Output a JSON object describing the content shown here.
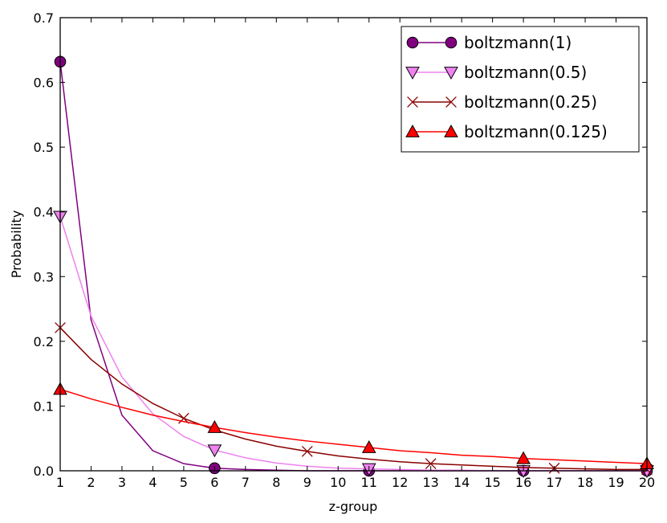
{
  "chart_data": {
    "type": "line",
    "xlabel": "z-group",
    "ylabel": "Probability",
    "xlim": [
      1,
      20
    ],
    "ylim": [
      0,
      0.7
    ],
    "xticks": [
      1,
      2,
      3,
      4,
      5,
      6,
      7,
      8,
      9,
      10,
      11,
      12,
      13,
      14,
      15,
      16,
      17,
      18,
      19,
      20
    ],
    "yticks": [
      0.0,
      0.1,
      0.2,
      0.3,
      0.4,
      0.5,
      0.6,
      0.7
    ],
    "grid": false,
    "legend_position": "top-right",
    "series": [
      {
        "name": "boltzmann(1)",
        "color": "#800080",
        "marker": "circle",
        "marker_every": 5,
        "x": [
          1,
          2,
          3,
          4,
          5,
          6,
          7,
          8,
          9,
          10,
          11,
          12,
          13,
          14,
          15,
          16,
          17,
          18,
          19,
          20
        ],
        "values": [
          0.632,
          0.233,
          0.086,
          0.031,
          0.011,
          0.004,
          0.002,
          0.001,
          0.0,
          0.0,
          0.0,
          0.0,
          0.0,
          0.0,
          0.0,
          0.0,
          0.0,
          0.0,
          0.0,
          0.0
        ]
      },
      {
        "name": "boltzmann(0.5)",
        "color": "#ee82ee",
        "marker": "triangle-down",
        "marker_every": 5,
        "x": [
          1,
          2,
          3,
          4,
          5,
          6,
          7,
          8,
          9,
          10,
          11,
          12,
          13,
          14,
          15,
          16,
          17,
          18,
          19,
          20
        ],
        "values": [
          0.393,
          0.239,
          0.145,
          0.088,
          0.053,
          0.032,
          0.02,
          0.012,
          0.007,
          0.004,
          0.003,
          0.002,
          0.001,
          0.001,
          0.0,
          0.0,
          0.0,
          0.0,
          0.0,
          0.0
        ]
      },
      {
        "name": "boltzmann(0.25)",
        "color": "#8b0000",
        "marker": "x",
        "marker_every": 4,
        "x": [
          1,
          2,
          3,
          4,
          5,
          6,
          7,
          8,
          9,
          10,
          11,
          12,
          13,
          14,
          15,
          16,
          17,
          18,
          19,
          20
        ],
        "values": [
          0.221,
          0.172,
          0.134,
          0.104,
          0.081,
          0.063,
          0.049,
          0.038,
          0.03,
          0.023,
          0.018,
          0.014,
          0.011,
          0.009,
          0.007,
          0.005,
          0.004,
          0.003,
          0.002,
          0.002
        ]
      },
      {
        "name": "boltzmann(0.125)",
        "color": "#ff0000",
        "marker": "triangle-up",
        "marker_every": 5,
        "x": [
          1,
          2,
          3,
          4,
          5,
          6,
          7,
          8,
          9,
          10,
          11,
          12,
          13,
          14,
          15,
          16,
          17,
          18,
          19,
          20
        ],
        "values": [
          0.126,
          0.111,
          0.098,
          0.086,
          0.076,
          0.067,
          0.059,
          0.052,
          0.046,
          0.041,
          0.036,
          0.031,
          0.028,
          0.024,
          0.022,
          0.019,
          0.017,
          0.015,
          0.013,
          0.011
        ]
      }
    ]
  }
}
